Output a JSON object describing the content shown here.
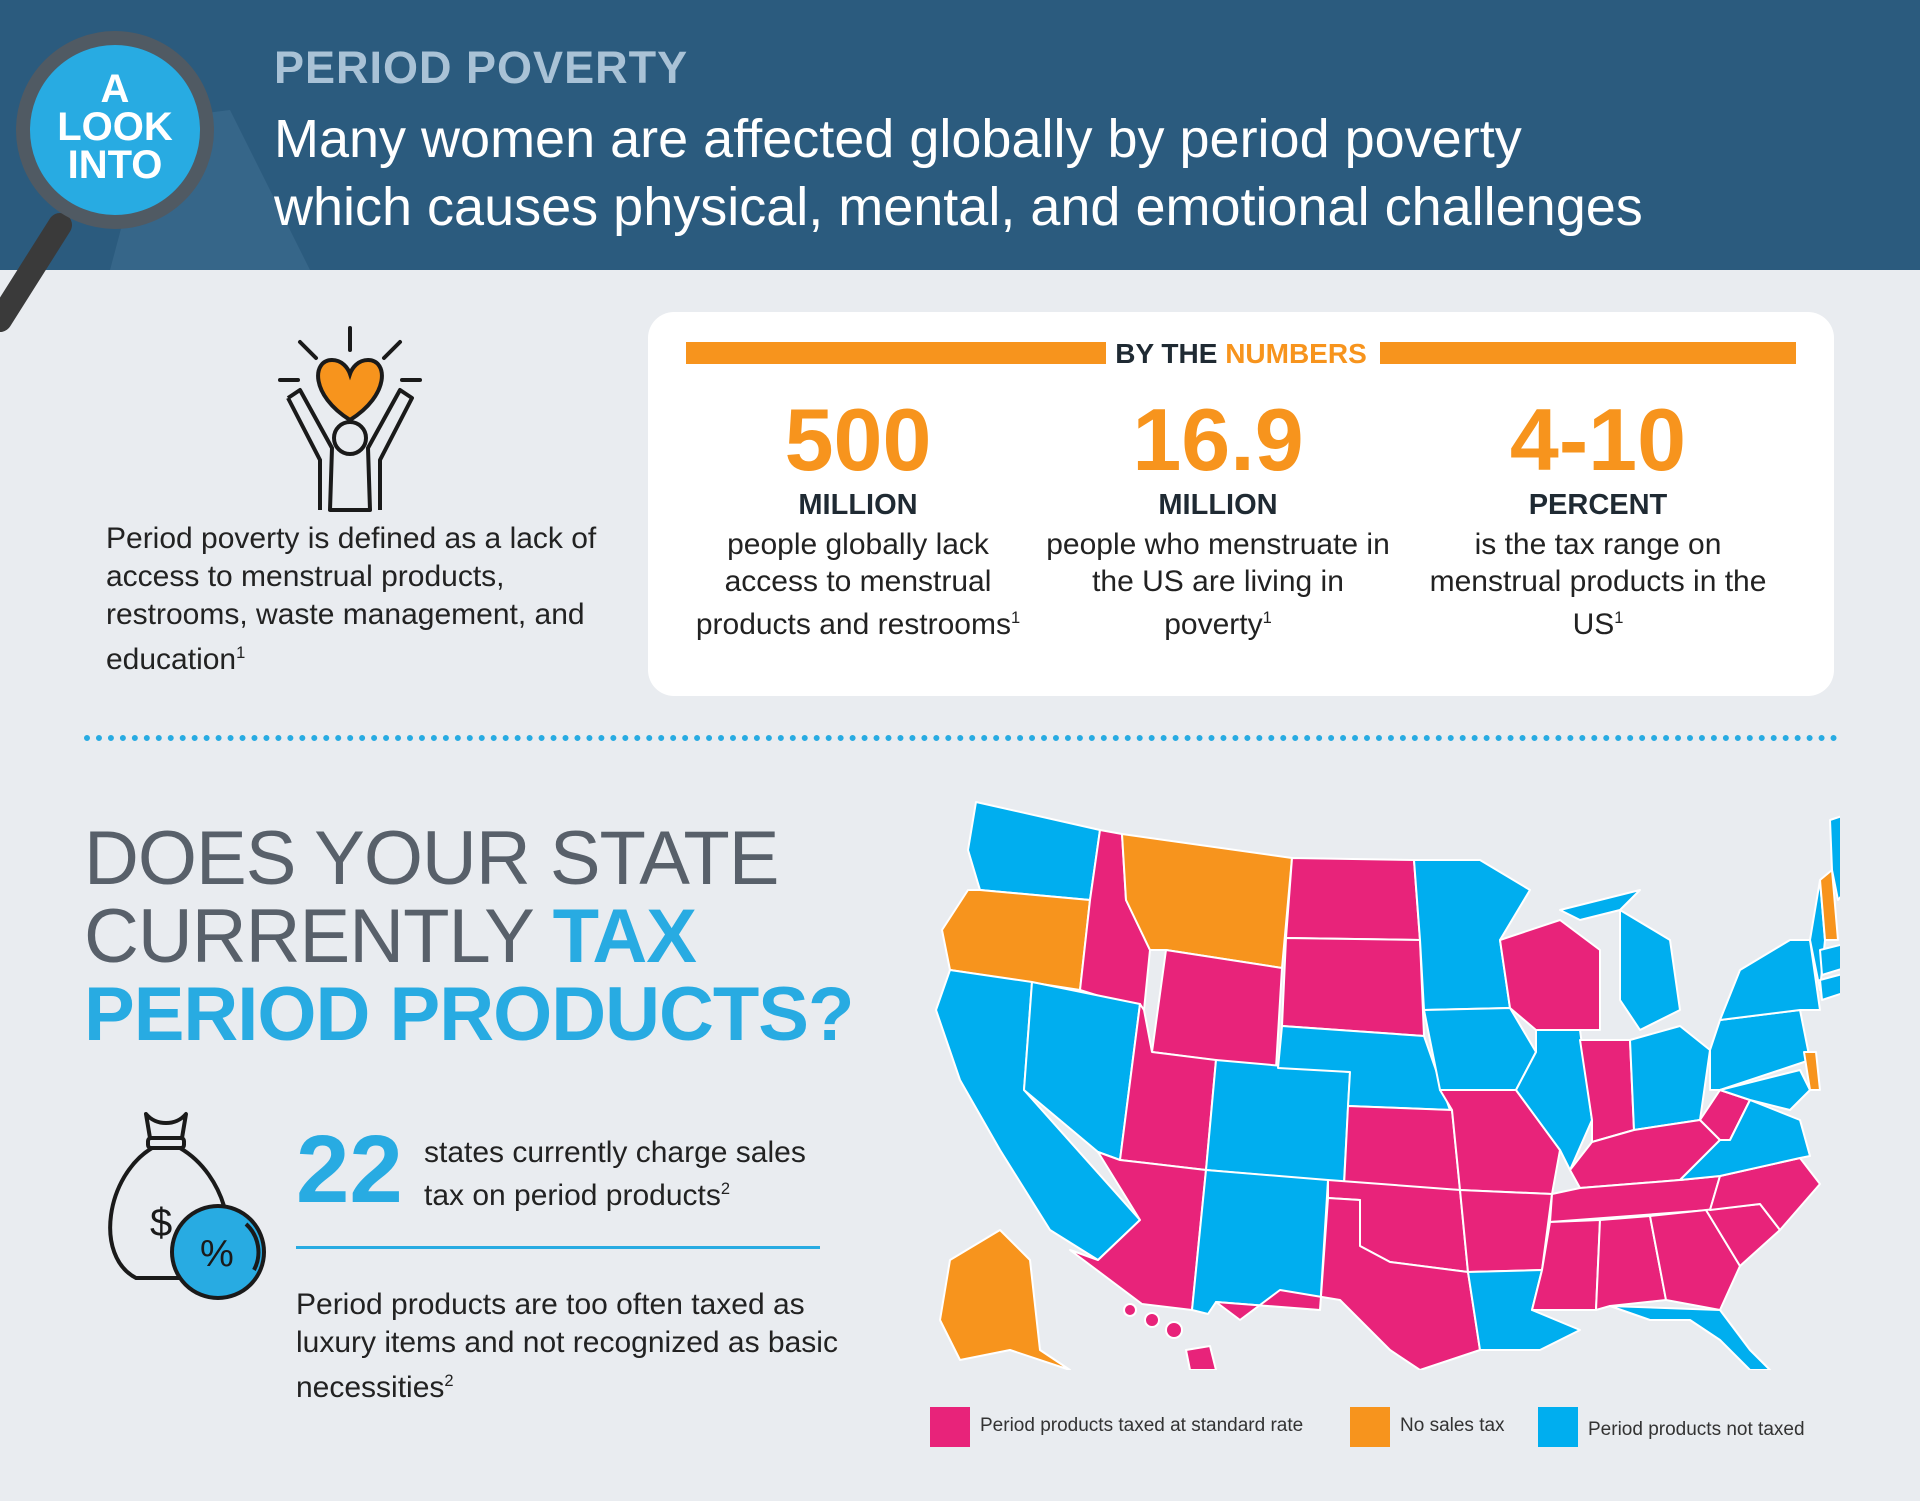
{
  "header": {
    "badge": [
      "A",
      "LOOK",
      "INTO"
    ],
    "kicker": "PERIOD POVERTY",
    "headline_line1": "Many women are affected globally by period poverty",
    "headline_line2": "which causes physical, mental, and emotional challenges"
  },
  "definition": {
    "text": "Period poverty is defined as a lack of access to menstrual products, restrooms, waste management, and education",
    "ref": "1"
  },
  "numbers": {
    "title_a": "BY THE ",
    "title_b": "NUMBERS",
    "stats": [
      {
        "num": "500",
        "unit": "MILLION",
        "desc": "people globally lack access to menstrual products and restrooms",
        "ref": "1"
      },
      {
        "num": "16.9",
        "unit": "MILLION",
        "desc": "people who menstruate in the US are living in poverty",
        "ref": "1"
      },
      {
        "num": "4-10",
        "unit": "PERCENT",
        "desc": "is the tax range on menstrual products in the US",
        "ref": "1"
      }
    ]
  },
  "question": {
    "line1": "DOES YOUR STATE",
    "line2a": "CURRENTLY ",
    "line2b": "TAX",
    "line3": "PERIOD PRODUCTS?"
  },
  "tax_fact": {
    "number": "22",
    "text": "states currently charge sales tax on period products",
    "ref": "2",
    "luxury": "Period products are too often taxed as luxury items and not recognized as basic necessities",
    "luxury_ref": "2"
  },
  "icons": {
    "hand": "hands-holding-heart-icon",
    "bag": "money-bag-percent-icon",
    "dollar": "$",
    "percent": "%"
  },
  "colors": {
    "taxed": "#e8237a",
    "no_tax": "#f7941d",
    "not_taxed": "#00aeef",
    "header": "#2b5b7e"
  },
  "legend": [
    {
      "label": "Period products taxed at standard rate",
      "color": "#e8237a"
    },
    {
      "label": "No sales tax",
      "color": "#f7941d"
    },
    {
      "label": "Period products not taxed",
      "color": "#00aeef"
    }
  ]
}
